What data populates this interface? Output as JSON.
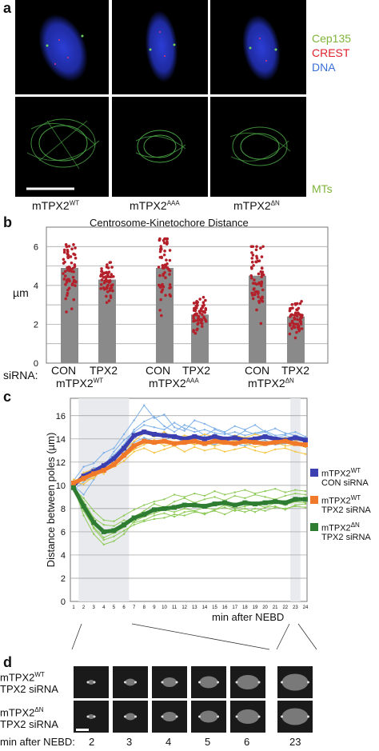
{
  "panel_a": {
    "label": "a",
    "legend_top": [
      {
        "text": "Cep135",
        "color": "#7fb43a"
      },
      {
        "text": "CREST",
        "color": "#e0202a"
      },
      {
        "text": "DNA",
        "color": "#3a6fd8"
      }
    ],
    "legend_bottom": {
      "text": "MTs",
      "color": "#7fb43a"
    },
    "columns": [
      {
        "base": "mTPX2",
        "sup": "WT"
      },
      {
        "base": "mTPX2",
        "sup": "AAA"
      },
      {
        "base": "mTPX2",
        "sup": "ΔN"
      }
    ]
  },
  "panel_b": {
    "label": "b",
    "title": "Centrosome-Kinetochore Distance",
    "ylabel": "µm",
    "sirna_label": "siRNA:",
    "groups": [
      {
        "con": "CON",
        "tpx": "TPX2",
        "base": "mTPX2",
        "sup": "WT"
      },
      {
        "con": "CON",
        "tpx": "TPX2",
        "base": "mTPX2",
        "sup": "AAA"
      },
      {
        "con": "CON",
        "tpx": "TPX2",
        "base": "mTPX2",
        "sup": "ΔN"
      }
    ]
  },
  "panel_c": {
    "label": "c",
    "ylabel": "Distance between poles (µm)",
    "xlabel": "min after NEBD",
    "legend": [
      {
        "line1": "mTPX2",
        "sup": "WT",
        "line2": "CON siRNA",
        "color": "#3b3fb0"
      },
      {
        "line1": "mTPX2",
        "sup": "WT",
        "line2": "TPX2 siRNA",
        "color": "#f07a2a"
      },
      {
        "line1": "mTPX2",
        "sup": "ΔN",
        "line2": "TPX2 siRNA",
        "color": "#2f7d32"
      }
    ]
  },
  "panel_d": {
    "label": "d",
    "rows": [
      {
        "line1": "mTPX2",
        "sup": "WT",
        "line2": "TPX2 siRNA"
      },
      {
        "line1": "mTPX2",
        "sup": "ΔN",
        "line2": "TPX2 siRNA"
      }
    ],
    "time_label": "min after NEBD:",
    "times": [
      "2",
      "3",
      "4",
      "5",
      "6",
      "23"
    ]
  },
  "chart_data": [
    {
      "type": "bar",
      "title": "Centrosome-Kinetochore Distance",
      "ylabel": "µm",
      "ylim": [
        0,
        7
      ],
      "yticks": [
        0,
        2,
        4,
        6
      ],
      "categories": [
        "CON mTPX2 WT",
        "TPX2 mTPX2 WT",
        "CON mTPX2 AAA",
        "TPX2 mTPX2 AAA",
        "CON mTPX2 ΔN",
        "TPX2 mTPX2 ΔN"
      ],
      "values": [
        4.9,
        4.3,
        4.9,
        2.5,
        4.5,
        2.4
      ],
      "spread": [
        [
          2.3,
          6.1
        ],
        [
          2.9,
          5.3
        ],
        [
          1.8,
          6.4
        ],
        [
          1.3,
          3.4
        ],
        [
          1.8,
          6.0
        ],
        [
          1.3,
          3.6
        ]
      ],
      "bar_color": "#8a8a8a",
      "dot_color": "#b3202a",
      "grid": true
    },
    {
      "type": "line",
      "ylabel": "Distance between poles (µm)",
      "xlabel": "min after NEBD",
      "ylim": [
        0,
        17.5
      ],
      "yticks": [
        0,
        2,
        4,
        6,
        8,
        10,
        12,
        14,
        16
      ],
      "x": [
        1,
        2,
        3,
        4,
        5,
        6,
        7,
        8,
        9,
        10,
        11,
        12,
        13,
        14,
        15,
        16,
        17,
        18,
        19,
        20,
        21,
        22,
        23,
        24
      ],
      "shaded_x_ranges": [
        [
          1.5,
          6.5
        ],
        [
          22.5,
          23.5
        ]
      ],
      "grid": true,
      "series": [
        {
          "name": "mTPX2 WT CON siRNA",
          "color": "#3b3fb0",
          "values": [
            10.0,
            10.8,
            11.2,
            11.7,
            12.3,
            13.2,
            14.3,
            14.6,
            14.4,
            14.3,
            14.2,
            14.0,
            14.2,
            14.0,
            14.2,
            14.0,
            14.1,
            13.9,
            14.0,
            14.2,
            14.0,
            13.9,
            14.1,
            13.9
          ]
        },
        {
          "name": "mTPX2 WT TPX2 siRNA",
          "color": "#f07a2a",
          "values": [
            10.2,
            10.6,
            11.0,
            11.3,
            11.8,
            12.6,
            13.4,
            13.8,
            13.7,
            13.8,
            13.6,
            13.7,
            13.8,
            13.6,
            13.8,
            13.7,
            13.6,
            13.8,
            13.7,
            13.6,
            13.7,
            13.8,
            13.6,
            13.5
          ]
        },
        {
          "name": "mTPX2 ΔN TPX2 siRNA",
          "color": "#2f7d32",
          "values": [
            9.8,
            8.2,
            6.8,
            6.0,
            6.1,
            6.6,
            7.2,
            7.5,
            7.9,
            8.0,
            8.1,
            8.3,
            8.3,
            8.2,
            8.4,
            8.5,
            8.3,
            8.5,
            8.4,
            8.5,
            8.6,
            8.5,
            8.8,
            8.8
          ]
        }
      ],
      "individual_traces": {
        "blue": [
          [
            10.0,
            9.2,
            10.5,
            11.8,
            12.6,
            13.5,
            14.8,
            15.5,
            15.9,
            15.1,
            14.6,
            15.2,
            14.9,
            14.3,
            14.8,
            14.5,
            14.2,
            14.7,
            14.4,
            14.6,
            14.1,
            14.3,
            14.0,
            13.8
          ],
          [
            10.4,
            11.6,
            11.9,
            12.8,
            13.2,
            14.4,
            15.6,
            16.9,
            15.8,
            16.1,
            15.0,
            14.7,
            15.6,
            15.3,
            14.9,
            14.6,
            15.1,
            14.8,
            15.2,
            14.6,
            14.9,
            14.5,
            14.3,
            14.1
          ],
          [
            9.6,
            10.3,
            10.9,
            11.3,
            11.9,
            12.8,
            13.7,
            14.1,
            13.8,
            13.9,
            14.3,
            13.6,
            13.9,
            13.7,
            13.5,
            13.9,
            13.6,
            13.4,
            13.7,
            13.9,
            13.5,
            13.6,
            13.8,
            13.5
          ],
          [
            10.1,
            11.0,
            11.5,
            11.6,
            12.9,
            13.9,
            14.6,
            15.2,
            15.0,
            14.8,
            15.4,
            14.9,
            14.6,
            14.8,
            14.5,
            14.4,
            14.6,
            14.3,
            14.5,
            14.7,
            14.3,
            14.4,
            14.6,
            14.2
          ]
        ],
        "orange": [
          [
            10.3,
            10.1,
            10.8,
            11.2,
            11.6,
            12.1,
            12.9,
            13.2,
            12.8,
            13.1,
            13.4,
            12.9,
            13.3,
            13.0,
            13.2,
            12.9,
            13.1,
            13.3,
            13.0,
            12.8,
            13.1,
            13.2,
            12.9,
            12.7
          ],
          [
            10.0,
            11.1,
            11.4,
            11.0,
            12.2,
            13.0,
            13.8,
            14.5,
            14.2,
            14.6,
            14.0,
            14.3,
            14.1,
            14.4,
            14.2,
            14.0,
            14.3,
            14.1,
            14.4,
            14.2,
            14.0,
            14.1,
            13.9,
            13.8
          ],
          [
            10.5,
            10.4,
            10.6,
            11.5,
            11.8,
            12.4,
            13.1,
            13.5,
            13.9,
            13.4,
            13.6,
            13.8,
            13.5,
            13.7,
            13.4,
            13.6,
            13.9,
            13.6,
            13.3,
            13.5,
            13.7,
            13.4,
            13.5,
            13.3
          ]
        ],
        "green": [
          [
            9.6,
            7.8,
            6.4,
            5.5,
            5.9,
            6.4,
            7.3,
            7.8,
            8.4,
            8.1,
            8.6,
            8.9,
            8.5,
            8.8,
            9.0,
            8.7,
            9.1,
            8.9,
            9.2,
            9.0,
            8.8,
            9.1,
            9.3,
            9.2
          ],
          [
            10.0,
            8.6,
            7.2,
            6.6,
            6.5,
            7.0,
            6.8,
            7.0,
            7.4,
            7.6,
            7.3,
            7.7,
            7.8,
            7.5,
            7.9,
            8.1,
            7.8,
            8.0,
            7.7,
            8.1,
            8.2,
            7.9,
            8.3,
            8.4
          ],
          [
            9.9,
            7.4,
            5.8,
            4.9,
            5.2,
            5.8,
            6.9,
            7.3,
            7.6,
            7.9,
            7.7,
            8.0,
            7.8,
            8.1,
            7.9,
            8.3,
            8.0,
            8.2,
            8.4,
            8.1,
            8.5,
            8.3,
            8.6,
            8.5
          ],
          [
            9.7,
            8.9,
            7.8,
            7.0,
            6.9,
            7.4,
            7.9,
            8.3,
            8.6,
            8.8,
            9.2,
            9.0,
            9.3,
            9.1,
            9.5,
            9.2,
            9.4,
            9.6,
            9.3,
            9.5,
            9.7,
            9.4,
            9.6,
            9.5
          ],
          [
            9.8,
            8.1,
            6.3,
            5.3,
            5.6,
            6.1,
            6.6,
            6.9,
            7.1,
            7.2,
            7.5,
            7.4,
            7.7,
            7.6,
            7.8,
            7.5,
            7.9,
            7.7,
            8.0,
            7.8,
            8.1,
            8.0,
            8.2,
            8.1
          ]
        ]
      }
    }
  ]
}
